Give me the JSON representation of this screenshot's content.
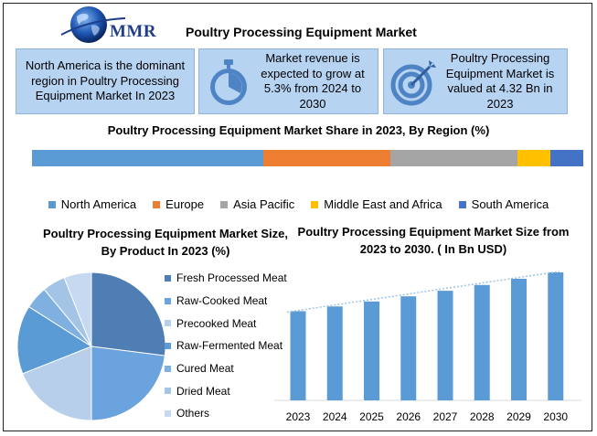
{
  "header": {
    "logo_text": "MMR",
    "title": "Poultry Processing Equipment Market"
  },
  "cards": [
    {
      "text": "North America is the dominant region in Poultry Processing Equipment Market In 2023",
      "icon": "none"
    },
    {
      "text": "Market revenue is expected to grow at 5.3% from 2024 to 2030",
      "icon": "stopwatch-icon"
    },
    {
      "text": "Poultry Processing Equipment Market is valued at 4.32 Bn in 2023",
      "icon": "target-icon"
    }
  ],
  "colors": {
    "card_bg": "#b7d3f2",
    "accent_blue": "#2f5597",
    "north_america": "#5b9bd5",
    "europe": "#ed7d31",
    "asia_pacific": "#a5a5a5",
    "mea": "#ffc000",
    "south_america": "#4472c4"
  },
  "chart_data": [
    {
      "type": "bar",
      "orientation": "stacked-horizontal",
      "title": "Poultry Processing Equipment Market Share in 2023, By Region (%)",
      "categories": [
        "North America",
        "Europe",
        "Asia Pacific",
        "Middle East and Africa",
        "South America"
      ],
      "values": [
        42,
        23,
        23,
        6,
        6
      ],
      "colors": [
        "#5b9bd5",
        "#ed7d31",
        "#a5a5a5",
        "#ffc000",
        "#4472c4"
      ],
      "legend": "bottom"
    },
    {
      "type": "pie",
      "title": "Poultry Processing Equipment Market Size, By Product In 2023 (%)",
      "categories": [
        "Fresh Processed Meat",
        "Raw-Cooked Meat",
        "Precooked Meat",
        "Raw-Fermented Meat",
        "Cured Meat",
        "Dried Meat",
        "Others"
      ],
      "values": [
        27,
        23,
        19,
        15,
        5,
        5,
        6
      ],
      "colors": [
        "#4e7eb3",
        "#6aa3dd",
        "#b7cfea",
        "#5b9bd5",
        "#7fb0e0",
        "#a4c4e6",
        "#c6d9f0"
      ],
      "legend": "right"
    },
    {
      "type": "bar",
      "title": "Poultry Processing Equipment Market Size from 2023 to 2030. ( In Bn USD)",
      "categories": [
        "2023",
        "2024",
        "2025",
        "2026",
        "2027",
        "2028",
        "2029",
        "2030"
      ],
      "values": [
        4.32,
        4.55,
        4.79,
        5.04,
        5.31,
        5.59,
        5.89,
        6.2
      ],
      "ylim": [
        0,
        6.2
      ],
      "trendline": true,
      "grid": false,
      "color": "#5b9bd5"
    }
  ]
}
